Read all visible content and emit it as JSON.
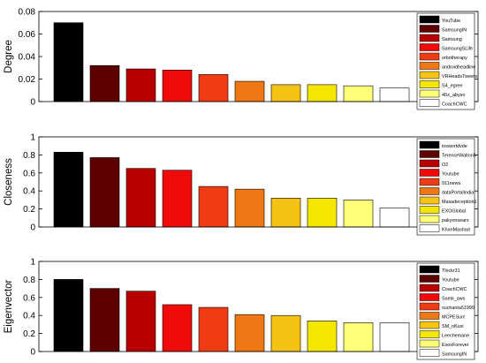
{
  "chart_data": [
    {
      "type": "bar",
      "ylabel": "Degree",
      "ylim": [
        0,
        0.08
      ],
      "yticks": [
        "0",
        "0.02",
        "0.04",
        "0.06",
        "0.08"
      ],
      "legend_position": "top-right",
      "legend": [
        "YouTube",
        "SamsungIN",
        "Samsung",
        "SamsungSLife",
        "orbotherapy",
        "androidheadline",
        "VRHeadsTweets",
        "S4_egree",
        "4ßx_abyso",
        "CoachCWC"
      ],
      "values": [
        0.07,
        0.032,
        0.029,
        0.028,
        0.024,
        0.018,
        0.015,
        0.015,
        0.014,
        0.012
      ],
      "colors": [
        "#000000",
        "#5c0000",
        "#b80000",
        "#f00a0a",
        "#f03c14",
        "#f07814",
        "#f5c314",
        "#f5e600",
        "#ffff78",
        "#ffffff"
      ]
    },
    {
      "type": "bar",
      "ylabel": "Closeness",
      "ylim": [
        0,
        1
      ],
      "yticks": [
        "0",
        "0.2",
        "0.4",
        "0.6",
        "0.8",
        "1"
      ],
      "legend_position": "top-right",
      "legend": [
        "inswortdvde",
        "TerenceWalton5",
        "O2",
        "Youtube",
        "911news",
        "dataPortalIndia",
        "Masadeception1",
        "EXOGlobal",
        "pakyonsears",
        "KhanMashad"
      ],
      "values": [
        0.83,
        0.77,
        0.65,
        0.63,
        0.45,
        0.42,
        0.32,
        0.32,
        0.3,
        0.21
      ],
      "colors": [
        "#000000",
        "#5c0000",
        "#b80000",
        "#f00a0a",
        "#f03c14",
        "#f07814",
        "#f5c314",
        "#f5e600",
        "#ffff78",
        "#ffffff"
      ]
    },
    {
      "type": "bar",
      "ylabel": "Eigenvector",
      "ylim": [
        0,
        1
      ],
      "yticks": [
        "0",
        "0.2",
        "0.4",
        "0.6",
        "0.8",
        "1"
      ],
      "legend_position": "top-right",
      "legend": [
        "Thickr31",
        "Youtube",
        "CoachCWC",
        "Samk_aws",
        "suchanta51990",
        "MCPESun!",
        "SM_nKuxi",
        "Leechemane",
        "ExoxForever",
        "SamsungIN"
      ],
      "values": [
        0.8,
        0.7,
        0.67,
        0.52,
        0.49,
        0.41,
        0.4,
        0.34,
        0.32,
        0.32
      ],
      "colors": [
        "#000000",
        "#5c0000",
        "#b80000",
        "#f00a0a",
        "#f03c14",
        "#f07814",
        "#f5c314",
        "#f5e600",
        "#ffff78",
        "#ffffff"
      ]
    }
  ]
}
